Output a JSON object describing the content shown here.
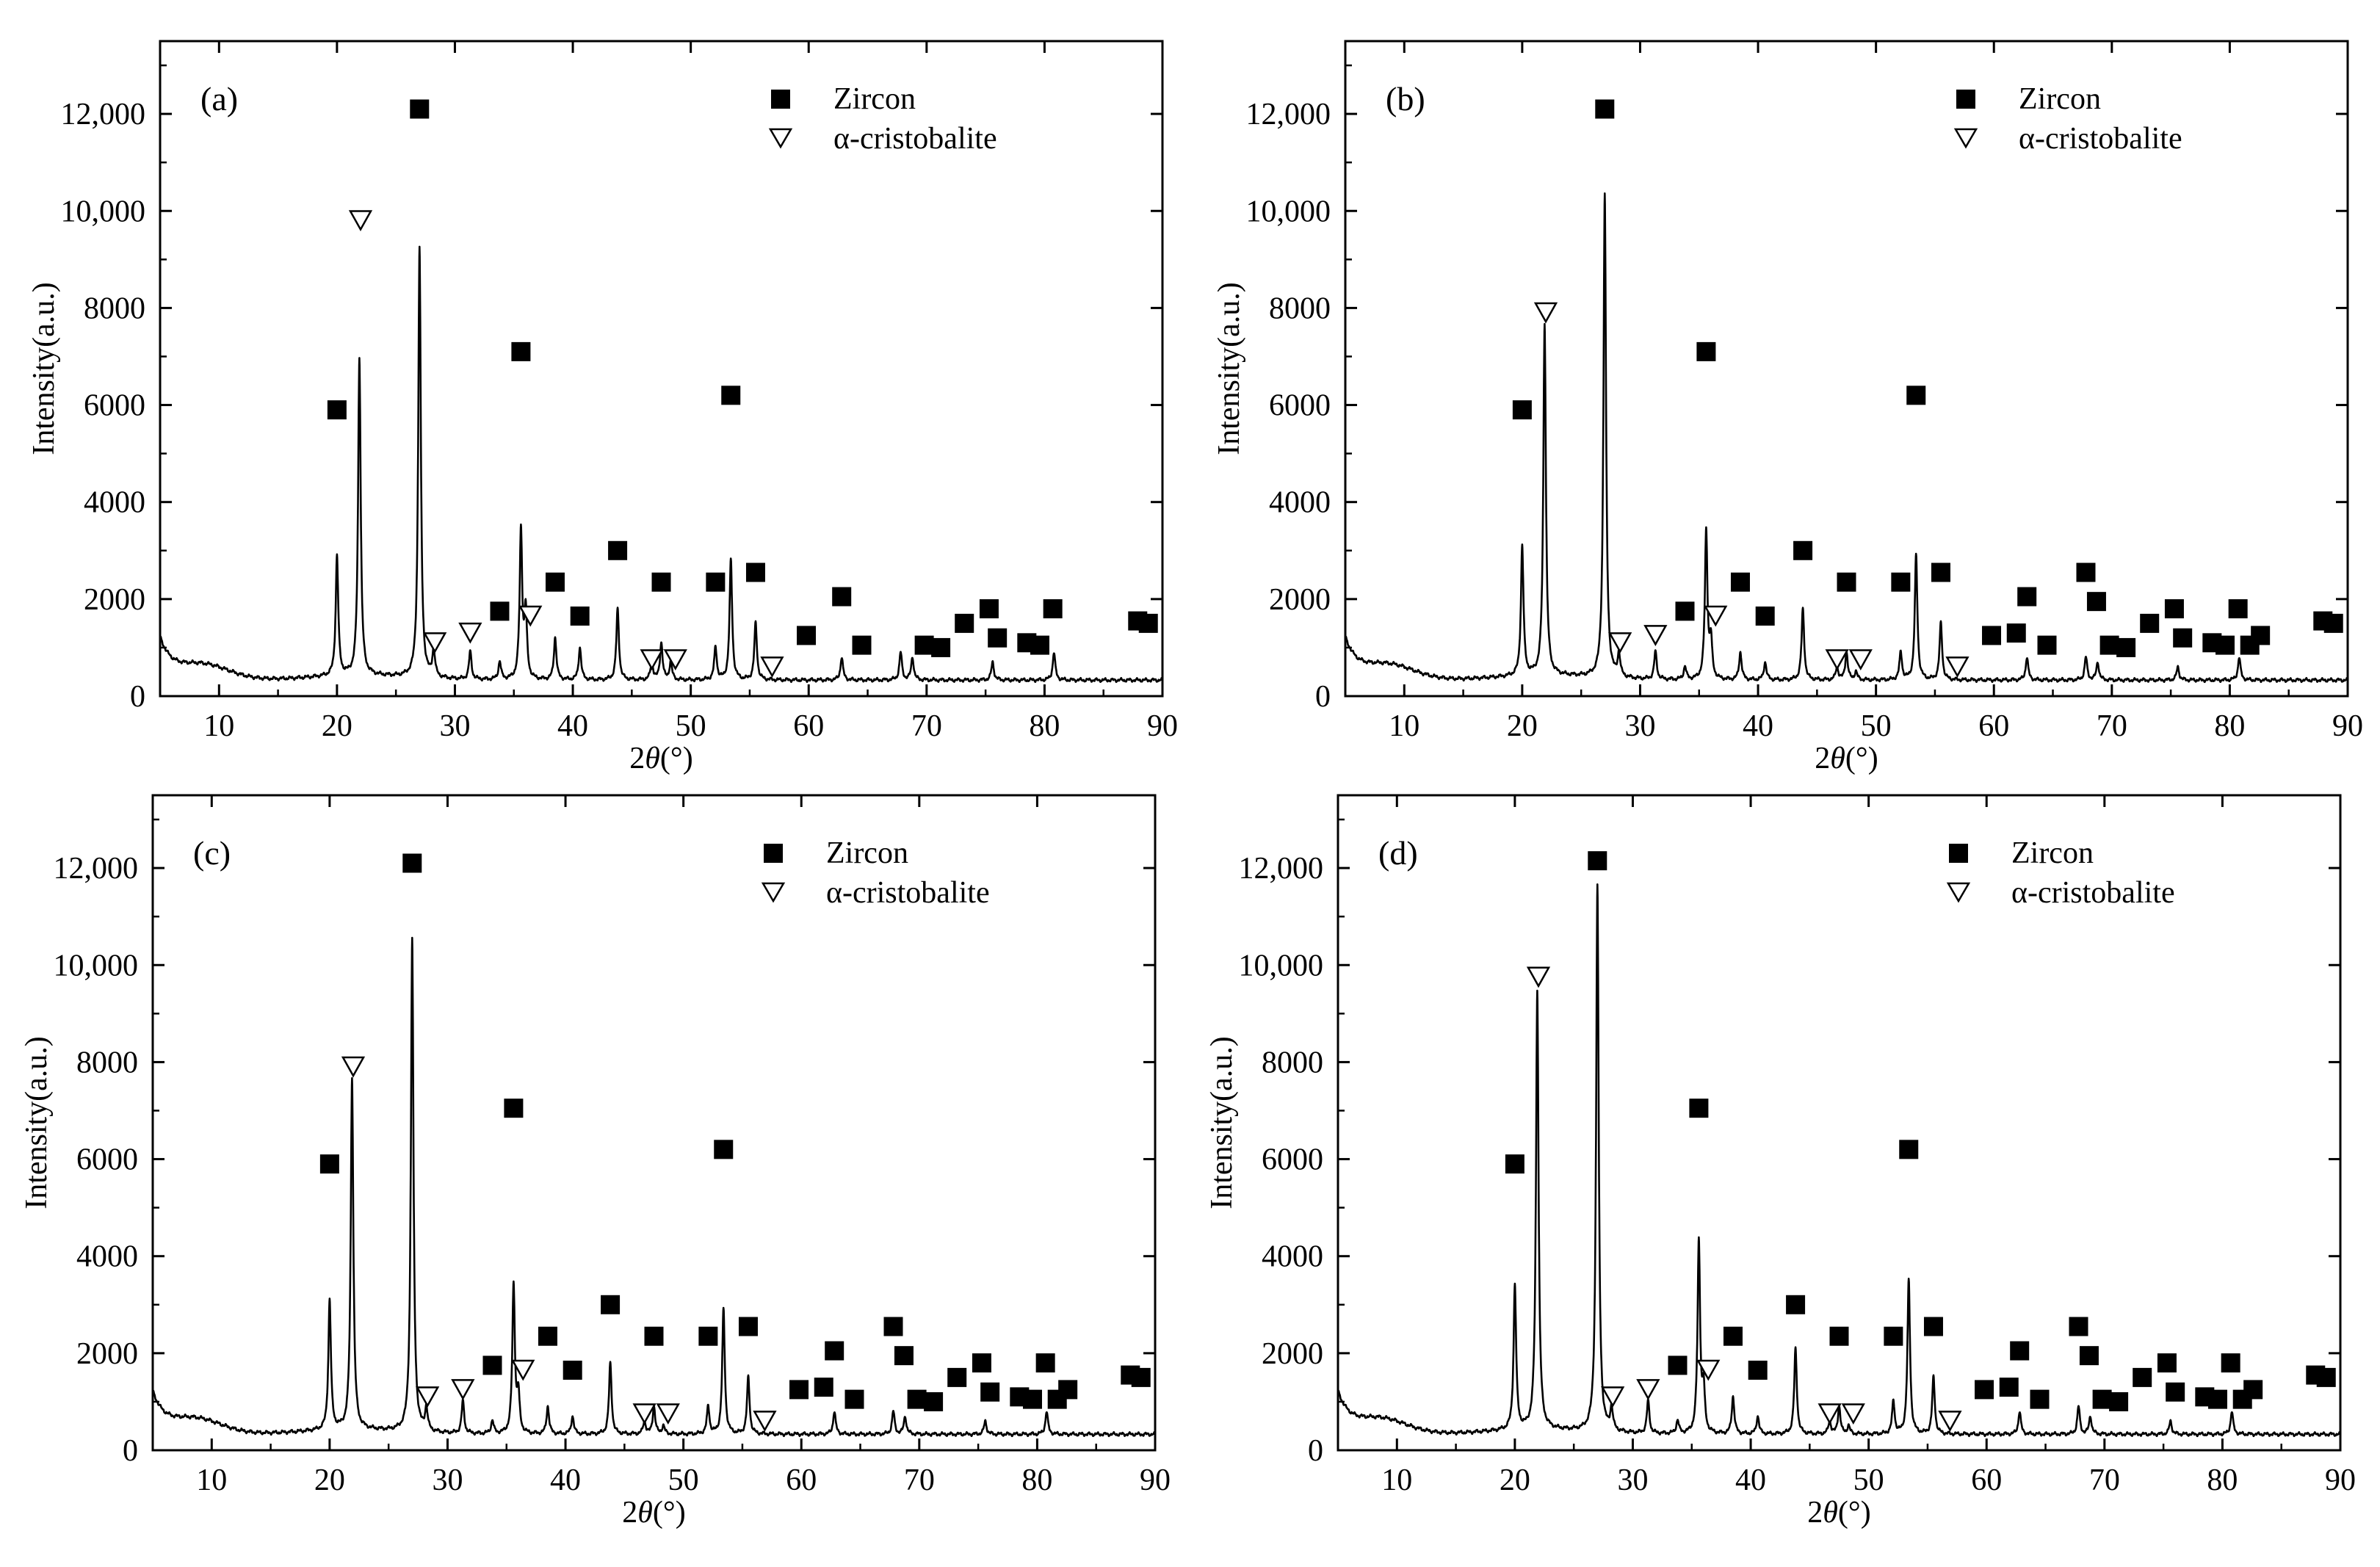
{
  "figure": {
    "xlabel_prefix": "2",
    "xlabel_theta": "θ",
    "xlabel_suffix": "(°)",
    "ylabel": "Intensity(a.u.)",
    "legend": {
      "zircon": "Zircon",
      "cristobalite": "α-cristobalite"
    }
  },
  "chart_data": [
    {
      "type": "line",
      "title": "(a)",
      "xlim": [
        5,
        90
      ],
      "ylim": [
        0,
        13500
      ],
      "xticks": [
        10,
        20,
        30,
        40,
        50,
        60,
        70,
        80,
        90
      ],
      "yticks": [
        0,
        2000,
        4000,
        6000,
        8000,
        10000,
        12000
      ],
      "ytick_labels": [
        "0",
        "2000",
        "4000",
        "6000",
        "8000",
        "10,000",
        "12,000"
      ],
      "xlabel": "2θ(°)",
      "ylabel": "Intensity(a.u.)",
      "legend": [
        "Zircon",
        "α-cristobalite"
      ],
      "peaks": [
        [
          20.0,
          2800
        ],
        [
          21.9,
          6900
        ],
        [
          27.0,
          9200
        ],
        [
          28.2,
          900
        ],
        [
          31.3,
          900
        ],
        [
          33.8,
          700
        ],
        [
          35.6,
          3400
        ],
        [
          36.0,
          1700
        ],
        [
          38.5,
          1200
        ],
        [
          40.6,
          1000
        ],
        [
          43.8,
          1800
        ],
        [
          46.7,
          700
        ],
        [
          47.5,
          1100
        ],
        [
          48.3,
          700
        ],
        [
          52.1,
          1000
        ],
        [
          53.4,
          2800
        ],
        [
          55.5,
          1500
        ],
        [
          62.8,
          800
        ],
        [
          67.8,
          900
        ],
        [
          68.8,
          800
        ],
        [
          75.6,
          700
        ],
        [
          80.8,
          900
        ]
      ],
      "zircon_markers": [
        [
          20.0,
          5900
        ],
        [
          27.0,
          12100
        ],
        [
          35.6,
          7100
        ],
        [
          53.4,
          6200
        ],
        [
          33.8,
          1750
        ],
        [
          38.5,
          2350
        ],
        [
          40.6,
          1650
        ],
        [
          43.8,
          3000
        ],
        [
          47.5,
          2350
        ],
        [
          52.1,
          2350
        ],
        [
          55.5,
          2550
        ],
        [
          59.8,
          1250
        ],
        [
          62.8,
          2050
        ],
        [
          64.5,
          1050
        ],
        [
          69.8,
          1050
        ],
        [
          71.2,
          1000
        ],
        [
          73.2,
          1500
        ],
        [
          75.3,
          1800
        ],
        [
          76.0,
          1200
        ],
        [
          78.5,
          1100
        ],
        [
          79.6,
          1050
        ],
        [
          80.7,
          1800
        ],
        [
          87.9,
          1550
        ],
        [
          88.8,
          1500
        ]
      ],
      "cristobalite_markers": [
        [
          22.0,
          9800
        ],
        [
          28.3,
          1100
        ],
        [
          31.3,
          1300
        ],
        [
          36.4,
          1650
        ],
        [
          46.7,
          750
        ],
        [
          48.7,
          750
        ],
        [
          56.9,
          600
        ]
      ]
    },
    {
      "type": "line",
      "title": "(b)",
      "xlim": [
        5,
        90
      ],
      "ylim": [
        0,
        13500
      ],
      "xticks": [
        10,
        20,
        30,
        40,
        50,
        60,
        70,
        80,
        90
      ],
      "yticks": [
        0,
        2000,
        4000,
        6000,
        8000,
        10000,
        12000
      ],
      "ytick_labels": [
        "0",
        "2000",
        "4000",
        "6000",
        "8000",
        "10,000",
        "12,000"
      ],
      "xlabel": "2θ(°)",
      "ylabel": "Intensity(a.u.)",
      "legend": [
        "Zircon",
        "α-cristobalite"
      ],
      "peaks": [
        [
          20.0,
          3000
        ],
        [
          21.9,
          7600
        ],
        [
          27.0,
          10300
        ],
        [
          28.2,
          800
        ],
        [
          31.3,
          900
        ],
        [
          33.8,
          600
        ],
        [
          35.6,
          3400
        ],
        [
          36.0,
          1100
        ],
        [
          38.5,
          900
        ],
        [
          40.6,
          700
        ],
        [
          43.8,
          1800
        ],
        [
          46.7,
          600
        ],
        [
          47.5,
          900
        ],
        [
          48.3,
          500
        ],
        [
          52.1,
          900
        ],
        [
          53.4,
          2900
        ],
        [
          55.5,
          1500
        ],
        [
          62.8,
          800
        ],
        [
          67.8,
          800
        ],
        [
          68.8,
          700
        ],
        [
          75.6,
          600
        ],
        [
          80.8,
          800
        ]
      ],
      "zircon_markers": [
        [
          20.0,
          5900
        ],
        [
          27.0,
          12100
        ],
        [
          35.6,
          7100
        ],
        [
          53.4,
          6200
        ],
        [
          33.8,
          1750
        ],
        [
          38.5,
          2350
        ],
        [
          40.6,
          1650
        ],
        [
          43.8,
          3000
        ],
        [
          47.5,
          2350
        ],
        [
          52.1,
          2350
        ],
        [
          55.5,
          2550
        ],
        [
          59.8,
          1250
        ],
        [
          61.9,
          1300
        ],
        [
          62.8,
          2050
        ],
        [
          64.5,
          1050
        ],
        [
          67.8,
          2550
        ],
        [
          68.7,
          1950
        ],
        [
          69.8,
          1050
        ],
        [
          71.2,
          1000
        ],
        [
          73.2,
          1500
        ],
        [
          75.3,
          1800
        ],
        [
          76.0,
          1200
        ],
        [
          78.5,
          1100
        ],
        [
          79.6,
          1050
        ],
        [
          80.7,
          1800
        ],
        [
          81.7,
          1050
        ],
        [
          82.6,
          1250
        ],
        [
          87.9,
          1550
        ],
        [
          88.8,
          1500
        ]
      ],
      "cristobalite_markers": [
        [
          22.0,
          7900
        ],
        [
          28.3,
          1100
        ],
        [
          31.3,
          1250
        ],
        [
          36.4,
          1650
        ],
        [
          46.7,
          750
        ],
        [
          48.7,
          750
        ],
        [
          56.9,
          600
        ]
      ]
    },
    {
      "type": "line",
      "title": "(c)",
      "xlim": [
        5,
        90
      ],
      "ylim": [
        0,
        13500
      ],
      "xticks": [
        10,
        20,
        30,
        40,
        50,
        60,
        70,
        80,
        90
      ],
      "yticks": [
        0,
        2000,
        4000,
        6000,
        8000,
        10000,
        12000
      ],
      "ytick_labels": [
        "0",
        "2000",
        "4000",
        "6000",
        "8000",
        "10,000",
        "12,000"
      ],
      "xlabel": "2θ(°)",
      "ylabel": "Intensity(a.u.)",
      "legend": [
        "Zircon",
        "α-cristobalite"
      ],
      "peaks": [
        [
          20.0,
          3000
        ],
        [
          21.9,
          7600
        ],
        [
          27.0,
          10500
        ],
        [
          28.2,
          800
        ],
        [
          31.3,
          1000
        ],
        [
          33.8,
          600
        ],
        [
          35.6,
          3400
        ],
        [
          36.0,
          1100
        ],
        [
          38.5,
          900
        ],
        [
          40.6,
          700
        ],
        [
          43.8,
          1800
        ],
        [
          46.7,
          600
        ],
        [
          47.5,
          900
        ],
        [
          48.3,
          500
        ],
        [
          52.1,
          900
        ],
        [
          53.4,
          2900
        ],
        [
          55.5,
          1500
        ],
        [
          62.8,
          800
        ],
        [
          67.8,
          800
        ],
        [
          68.8,
          700
        ],
        [
          75.6,
          600
        ],
        [
          80.8,
          800
        ]
      ],
      "zircon_markers": [
        [
          20.0,
          5900
        ],
        [
          27.0,
          12100
        ],
        [
          35.6,
          7050
        ],
        [
          53.4,
          6200
        ],
        [
          33.8,
          1750
        ],
        [
          38.5,
          2350
        ],
        [
          40.6,
          1650
        ],
        [
          43.8,
          3000
        ],
        [
          47.5,
          2350
        ],
        [
          52.1,
          2350
        ],
        [
          55.5,
          2550
        ],
        [
          59.8,
          1250
        ],
        [
          61.9,
          1300
        ],
        [
          62.8,
          2050
        ],
        [
          64.5,
          1050
        ],
        [
          67.8,
          2550
        ],
        [
          68.7,
          1950
        ],
        [
          69.8,
          1050
        ],
        [
          71.2,
          1000
        ],
        [
          73.2,
          1500
        ],
        [
          75.3,
          1800
        ],
        [
          76.0,
          1200
        ],
        [
          78.5,
          1100
        ],
        [
          79.6,
          1050
        ],
        [
          80.7,
          1800
        ],
        [
          81.7,
          1050
        ],
        [
          82.6,
          1250
        ],
        [
          87.9,
          1550
        ],
        [
          88.8,
          1500
        ]
      ],
      "cristobalite_markers": [
        [
          22.0,
          7900
        ],
        [
          28.3,
          1100
        ],
        [
          31.3,
          1250
        ],
        [
          36.4,
          1650
        ],
        [
          46.7,
          750
        ],
        [
          48.7,
          750
        ],
        [
          56.9,
          600
        ]
      ]
    },
    {
      "type": "line",
      "title": "(d)",
      "xlim": [
        5,
        90
      ],
      "ylim": [
        0,
        13500
      ],
      "xticks": [
        10,
        20,
        30,
        40,
        50,
        60,
        70,
        80,
        90
      ],
      "yticks": [
        0,
        2000,
        4000,
        6000,
        8000,
        10000,
        12000
      ],
      "ytick_labels": [
        "0",
        "2000",
        "4000",
        "6000",
        "8000",
        "10,000",
        "12,000"
      ],
      "xlabel": "2θ(°)",
      "ylabel": "Intensity(a.u.)",
      "legend": [
        "Zircon",
        "α-cristobalite"
      ],
      "peaks": [
        [
          20.0,
          3300
        ],
        [
          21.9,
          9400
        ],
        [
          27.0,
          11600
        ],
        [
          28.2,
          800
        ],
        [
          31.3,
          1000
        ],
        [
          33.8,
          600
        ],
        [
          35.6,
          4300
        ],
        [
          36.0,
          1200
        ],
        [
          38.5,
          1100
        ],
        [
          40.6,
          700
        ],
        [
          43.8,
          2100
        ],
        [
          46.7,
          600
        ],
        [
          47.5,
          900
        ],
        [
          48.3,
          500
        ],
        [
          52.1,
          1000
        ],
        [
          53.4,
          3500
        ],
        [
          55.5,
          1500
        ],
        [
          62.8,
          800
        ],
        [
          67.8,
          900
        ],
        [
          68.8,
          700
        ],
        [
          75.6,
          600
        ],
        [
          80.8,
          800
        ]
      ],
      "zircon_markers": [
        [
          20.0,
          5900
        ],
        [
          27.0,
          12150
        ],
        [
          35.6,
          7050
        ],
        [
          53.4,
          6200
        ],
        [
          33.8,
          1750
        ],
        [
          38.5,
          2350
        ],
        [
          40.6,
          1650
        ],
        [
          43.8,
          3000
        ],
        [
          47.5,
          2350
        ],
        [
          52.1,
          2350
        ],
        [
          55.5,
          2550
        ],
        [
          59.8,
          1250
        ],
        [
          61.9,
          1300
        ],
        [
          62.8,
          2050
        ],
        [
          64.5,
          1050
        ],
        [
          67.8,
          2550
        ],
        [
          68.7,
          1950
        ],
        [
          69.8,
          1050
        ],
        [
          71.2,
          1000
        ],
        [
          73.2,
          1500
        ],
        [
          75.3,
          1800
        ],
        [
          76.0,
          1200
        ],
        [
          78.5,
          1100
        ],
        [
          79.6,
          1050
        ],
        [
          80.7,
          1800
        ],
        [
          81.7,
          1050
        ],
        [
          82.6,
          1250
        ],
        [
          87.9,
          1550
        ],
        [
          88.8,
          1500
        ]
      ],
      "cristobalite_markers": [
        [
          22.0,
          9750
        ],
        [
          28.3,
          1100
        ],
        [
          31.3,
          1250
        ],
        [
          36.4,
          1650
        ],
        [
          46.7,
          750
        ],
        [
          48.7,
          750
        ],
        [
          56.9,
          600
        ]
      ]
    }
  ]
}
